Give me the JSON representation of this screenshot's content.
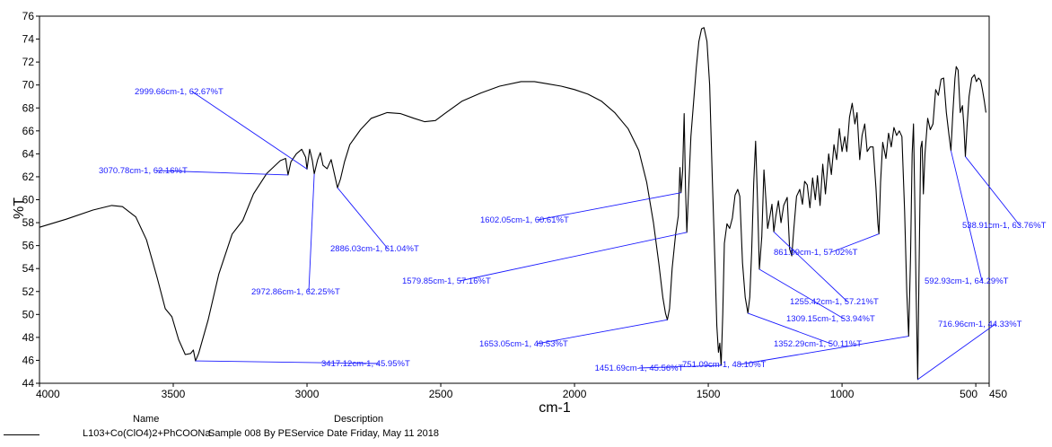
{
  "chart_data": {
    "type": "line",
    "xlabel": "cm-1",
    "ylabel": "%T",
    "xlim": [
      4000,
      450
    ],
    "ylim": [
      44,
      76
    ],
    "x_ticks": [
      4000,
      3500,
      3000,
      2500,
      2000,
      1500,
      1000,
      500,
      450
    ],
    "x_tick_labels": [
      "4000",
      "3500",
      "3000",
      "2500",
      "2000",
      "1500",
      "1000",
      "500",
      "450"
    ],
    "y_ticks": [
      44,
      46,
      48,
      50,
      52,
      54,
      56,
      58,
      60,
      62,
      64,
      66,
      68,
      70,
      72,
      74,
      76
    ],
    "y_tick_labels": [
      "44",
      "46",
      "48",
      "50",
      "52",
      "54",
      "56",
      "58",
      "60",
      "62",
      "64",
      "66",
      "68",
      "70",
      "72",
      "74",
      "76"
    ],
    "grid": false,
    "series": [
      {
        "name": "L103+Co(ClO4)2+PhCOONa",
        "color": "#000000",
        "points": [
          [
            4000,
            57.6
          ],
          [
            3900,
            58.3
          ],
          [
            3800,
            59.1
          ],
          [
            3730,
            59.5
          ],
          [
            3690,
            59.4
          ],
          [
            3640,
            58.5
          ],
          [
            3600,
            56.5
          ],
          [
            3560,
            53.2
          ],
          [
            3530,
            50.5
          ],
          [
            3505,
            49.8
          ],
          [
            3480,
            47.8
          ],
          [
            3455,
            46.5
          ],
          [
            3435,
            46.6
          ],
          [
            3425,
            46.9
          ],
          [
            3417,
            45.95
          ],
          [
            3405,
            46.6
          ],
          [
            3370,
            49.5
          ],
          [
            3330,
            53.5
          ],
          [
            3280,
            57.0
          ],
          [
            3240,
            58.2
          ],
          [
            3200,
            60.5
          ],
          [
            3150,
            62.3
          ],
          [
            3100,
            63.4
          ],
          [
            3080,
            63.6
          ],
          [
            3071,
            62.16
          ],
          [
            3060,
            63.3
          ],
          [
            3040,
            64.0
          ],
          [
            3020,
            64.4
          ],
          [
            3005,
            63.7
          ],
          [
            3000,
            62.67
          ],
          [
            2990,
            64.4
          ],
          [
            2980,
            63.4
          ],
          [
            2973,
            62.25
          ],
          [
            2960,
            63.5
          ],
          [
            2950,
            64.1
          ],
          [
            2940,
            63.0
          ],
          [
            2925,
            62.7
          ],
          [
            2910,
            63.5
          ],
          [
            2900,
            62.5
          ],
          [
            2886,
            61.04
          ],
          [
            2875,
            61.8
          ],
          [
            2860,
            63.3
          ],
          [
            2840,
            64.8
          ],
          [
            2800,
            66.1
          ],
          [
            2760,
            67.1
          ],
          [
            2700,
            67.6
          ],
          [
            2650,
            67.5
          ],
          [
            2600,
            67.1
          ],
          [
            2560,
            66.8
          ],
          [
            2520,
            66.9
          ],
          [
            2480,
            67.6
          ],
          [
            2420,
            68.6
          ],
          [
            2350,
            69.3
          ],
          [
            2280,
            69.9
          ],
          [
            2200,
            70.3
          ],
          [
            2150,
            70.3
          ],
          [
            2100,
            70.1
          ],
          [
            2050,
            69.9
          ],
          [
            2000,
            69.6
          ],
          [
            1950,
            69.2
          ],
          [
            1900,
            68.6
          ],
          [
            1850,
            67.6
          ],
          [
            1800,
            66.2
          ],
          [
            1760,
            64.3
          ],
          [
            1730,
            61.5
          ],
          [
            1705,
            58.0
          ],
          [
            1685,
            54.5
          ],
          [
            1670,
            51.5
          ],
          [
            1660,
            50.1
          ],
          [
            1653,
            49.53
          ],
          [
            1645,
            50.5
          ],
          [
            1635,
            54.0
          ],
          [
            1622,
            57.0
          ],
          [
            1612,
            58.6
          ],
          [
            1606,
            62.8
          ],
          [
            1602,
            60.61
          ],
          [
            1596,
            62.5
          ],
          [
            1590,
            67.5
          ],
          [
            1585,
            61.0
          ],
          [
            1580,
            57.16
          ],
          [
            1575,
            60.0
          ],
          [
            1565,
            65.5
          ],
          [
            1555,
            68.5
          ],
          [
            1545,
            71.5
          ],
          [
            1535,
            73.8
          ],
          [
            1525,
            74.9
          ],
          [
            1516,
            75.0
          ],
          [
            1505,
            73.8
          ],
          [
            1495,
            70.0
          ],
          [
            1485,
            62.0
          ],
          [
            1475,
            54.5
          ],
          [
            1468,
            49.0
          ],
          [
            1462,
            46.7
          ],
          [
            1457,
            47.5
          ],
          [
            1452,
            45.56
          ],
          [
            1446,
            50.0
          ],
          [
            1440,
            56.2
          ],
          [
            1430,
            57.9
          ],
          [
            1420,
            57.5
          ],
          [
            1410,
            58.4
          ],
          [
            1400,
            60.4
          ],
          [
            1390,
            60.9
          ],
          [
            1382,
            60.3
          ],
          [
            1372,
            54.5
          ],
          [
            1362,
            51.5
          ],
          [
            1352,
            50.11
          ],
          [
            1345,
            51.5
          ],
          [
            1338,
            55.5
          ],
          [
            1330,
            61.5
          ],
          [
            1323,
            65.1
          ],
          [
            1316,
            60.0
          ],
          [
            1309,
            53.94
          ],
          [
            1300,
            56.8
          ],
          [
            1292,
            62.6
          ],
          [
            1285,
            60.2
          ],
          [
            1278,
            57.5
          ],
          [
            1270,
            58.5
          ],
          [
            1262,
            59.6
          ],
          [
            1255,
            57.21
          ],
          [
            1248,
            58.5
          ],
          [
            1238,
            59.9
          ],
          [
            1228,
            58.0
          ],
          [
            1218,
            59.5
          ],
          [
            1205,
            60.2
          ],
          [
            1196,
            55.7
          ],
          [
            1188,
            55.1
          ],
          [
            1180,
            57.5
          ],
          [
            1170,
            60.3
          ],
          [
            1158,
            60.9
          ],
          [
            1148,
            59.6
          ],
          [
            1140,
            61.6
          ],
          [
            1130,
            61.3
          ],
          [
            1120,
            59.3
          ],
          [
            1110,
            61.9
          ],
          [
            1100,
            60.0
          ],
          [
            1092,
            62.1
          ],
          [
            1082,
            59.5
          ],
          [
            1072,
            63.1
          ],
          [
            1062,
            60.5
          ],
          [
            1050,
            64.0
          ],
          [
            1040,
            62.2
          ],
          [
            1030,
            64.8
          ],
          [
            1020,
            63.5
          ],
          [
            1010,
            66.2
          ],
          [
            1000,
            64.2
          ],
          [
            990,
            65.5
          ],
          [
            982,
            64.2
          ],
          [
            972,
            67.2
          ],
          [
            962,
            68.4
          ],
          [
            952,
            66.6
          ],
          [
            944,
            67.6
          ],
          [
            934,
            63.5
          ],
          [
            925,
            65.6
          ],
          [
            915,
            66.6
          ],
          [
            906,
            64.2
          ],
          [
            895,
            64.6
          ],
          [
            884,
            64.6
          ],
          [
            873,
            61.0
          ],
          [
            866,
            57.9
          ],
          [
            862,
            57.02
          ],
          [
            856,
            61.5
          ],
          [
            848,
            65.0
          ],
          [
            836,
            63.6
          ],
          [
            826,
            65.8
          ],
          [
            816,
            64.6
          ],
          [
            806,
            66.3
          ],
          [
            796,
            65.6
          ],
          [
            786,
            66.0
          ],
          [
            776,
            65.5
          ],
          [
            766,
            59.0
          ],
          [
            758,
            52.0
          ],
          [
            751,
            48.1
          ],
          [
            744,
            55.0
          ],
          [
            738,
            64.0
          ],
          [
            733,
            66.6
          ],
          [
            728,
            60.0
          ],
          [
            723,
            52.0
          ],
          [
            717,
            44.33
          ],
          [
            712,
            54.0
          ],
          [
            706,
            64.5
          ],
          [
            701,
            65.1
          ],
          [
            696,
            60.5
          ],
          [
            690,
            64.0
          ],
          [
            680,
            67.1
          ],
          [
            670,
            66.1
          ],
          [
            660,
            66.6
          ],
          [
            650,
            69.6
          ],
          [
            640,
            69.1
          ],
          [
            630,
            70.5
          ],
          [
            620,
            70.6
          ],
          [
            610,
            67.6
          ],
          [
            600,
            65.6
          ],
          [
            593,
            64.29
          ],
          [
            586,
            67.5
          ],
          [
            578,
            70.6
          ],
          [
            573,
            71.6
          ],
          [
            566,
            71.3
          ],
          [
            558,
            67.6
          ],
          [
            550,
            68.2
          ],
          [
            545,
            66.6
          ],
          [
            539,
            63.76
          ],
          [
            533,
            66.3
          ],
          [
            525,
            69.0
          ],
          [
            515,
            70.6
          ],
          [
            505,
            70.9
          ],
          [
            498,
            70.3
          ],
          [
            490,
            70.6
          ],
          [
            482,
            70.4
          ],
          [
            475,
            69.6
          ],
          [
            468,
            68.6
          ],
          [
            462,
            67.6
          ]
        ]
      }
    ],
    "annotations": [
      {
        "text": "2999.66cm-1, 62.67%T",
        "x": 2999.66,
        "y": 62.67
      },
      {
        "text": "3070.78cm-1, 62.16%T",
        "x": 3070.78,
        "y": 62.16
      },
      {
        "text": "2886.03cm-1, 61.04%T",
        "x": 2886.03,
        "y": 61.04
      },
      {
        "text": "2972.86cm-1, 62.25%T",
        "x": 2972.86,
        "y": 62.25
      },
      {
        "text": "3417.12cm-1, 45.95%T",
        "x": 3417.12,
        "y": 45.95
      },
      {
        "text": "1602.05cm-1, 60.61%T",
        "x": 1602.05,
        "y": 60.61
      },
      {
        "text": "1579.85cm-1, 57.16%T",
        "x": 1579.85,
        "y": 57.16
      },
      {
        "text": "1653.05cm-1, 49.53%T",
        "x": 1653.05,
        "y": 49.53
      },
      {
        "text": "1451.69cm-1, 45.56%T",
        "x": 1451.69,
        "y": 45.56
      },
      {
        "text": "1352.29cm-1, 50.11%T",
        "x": 1352.29,
        "y": 50.11
      },
      {
        "text": "1309.15cm-1, 53.94%T",
        "x": 1309.15,
        "y": 53.94
      },
      {
        "text": "1255.42cm-1, 57.21%T",
        "x": 1255.42,
        "y": 57.21
      },
      {
        "text": "861.99cm-1, 57.02%T",
        "x": 861.99,
        "y": 57.02
      },
      {
        "text": "751.09cm-1, 48.10%T",
        "x": 751.09,
        "y": 48.1
      },
      {
        "text": "716.96cm-1, 44.33%T",
        "x": 716.96,
        "y": 44.33
      },
      {
        "text": "592.93cm-1, 64.29%T",
        "x": 592.93,
        "y": 64.29
      },
      {
        "text": "538.91cm-1, 63.76%T",
        "x": 538.91,
        "y": 63.76
      }
    ],
    "annotation_color": "#1a1aff"
  },
  "legend": {
    "name_header": "Name",
    "description_header": "Description",
    "name": "L103+Co(ClO4)2+PhCOONa",
    "description": "Sample 008 By PEService Date Friday, May 11 2018"
  }
}
